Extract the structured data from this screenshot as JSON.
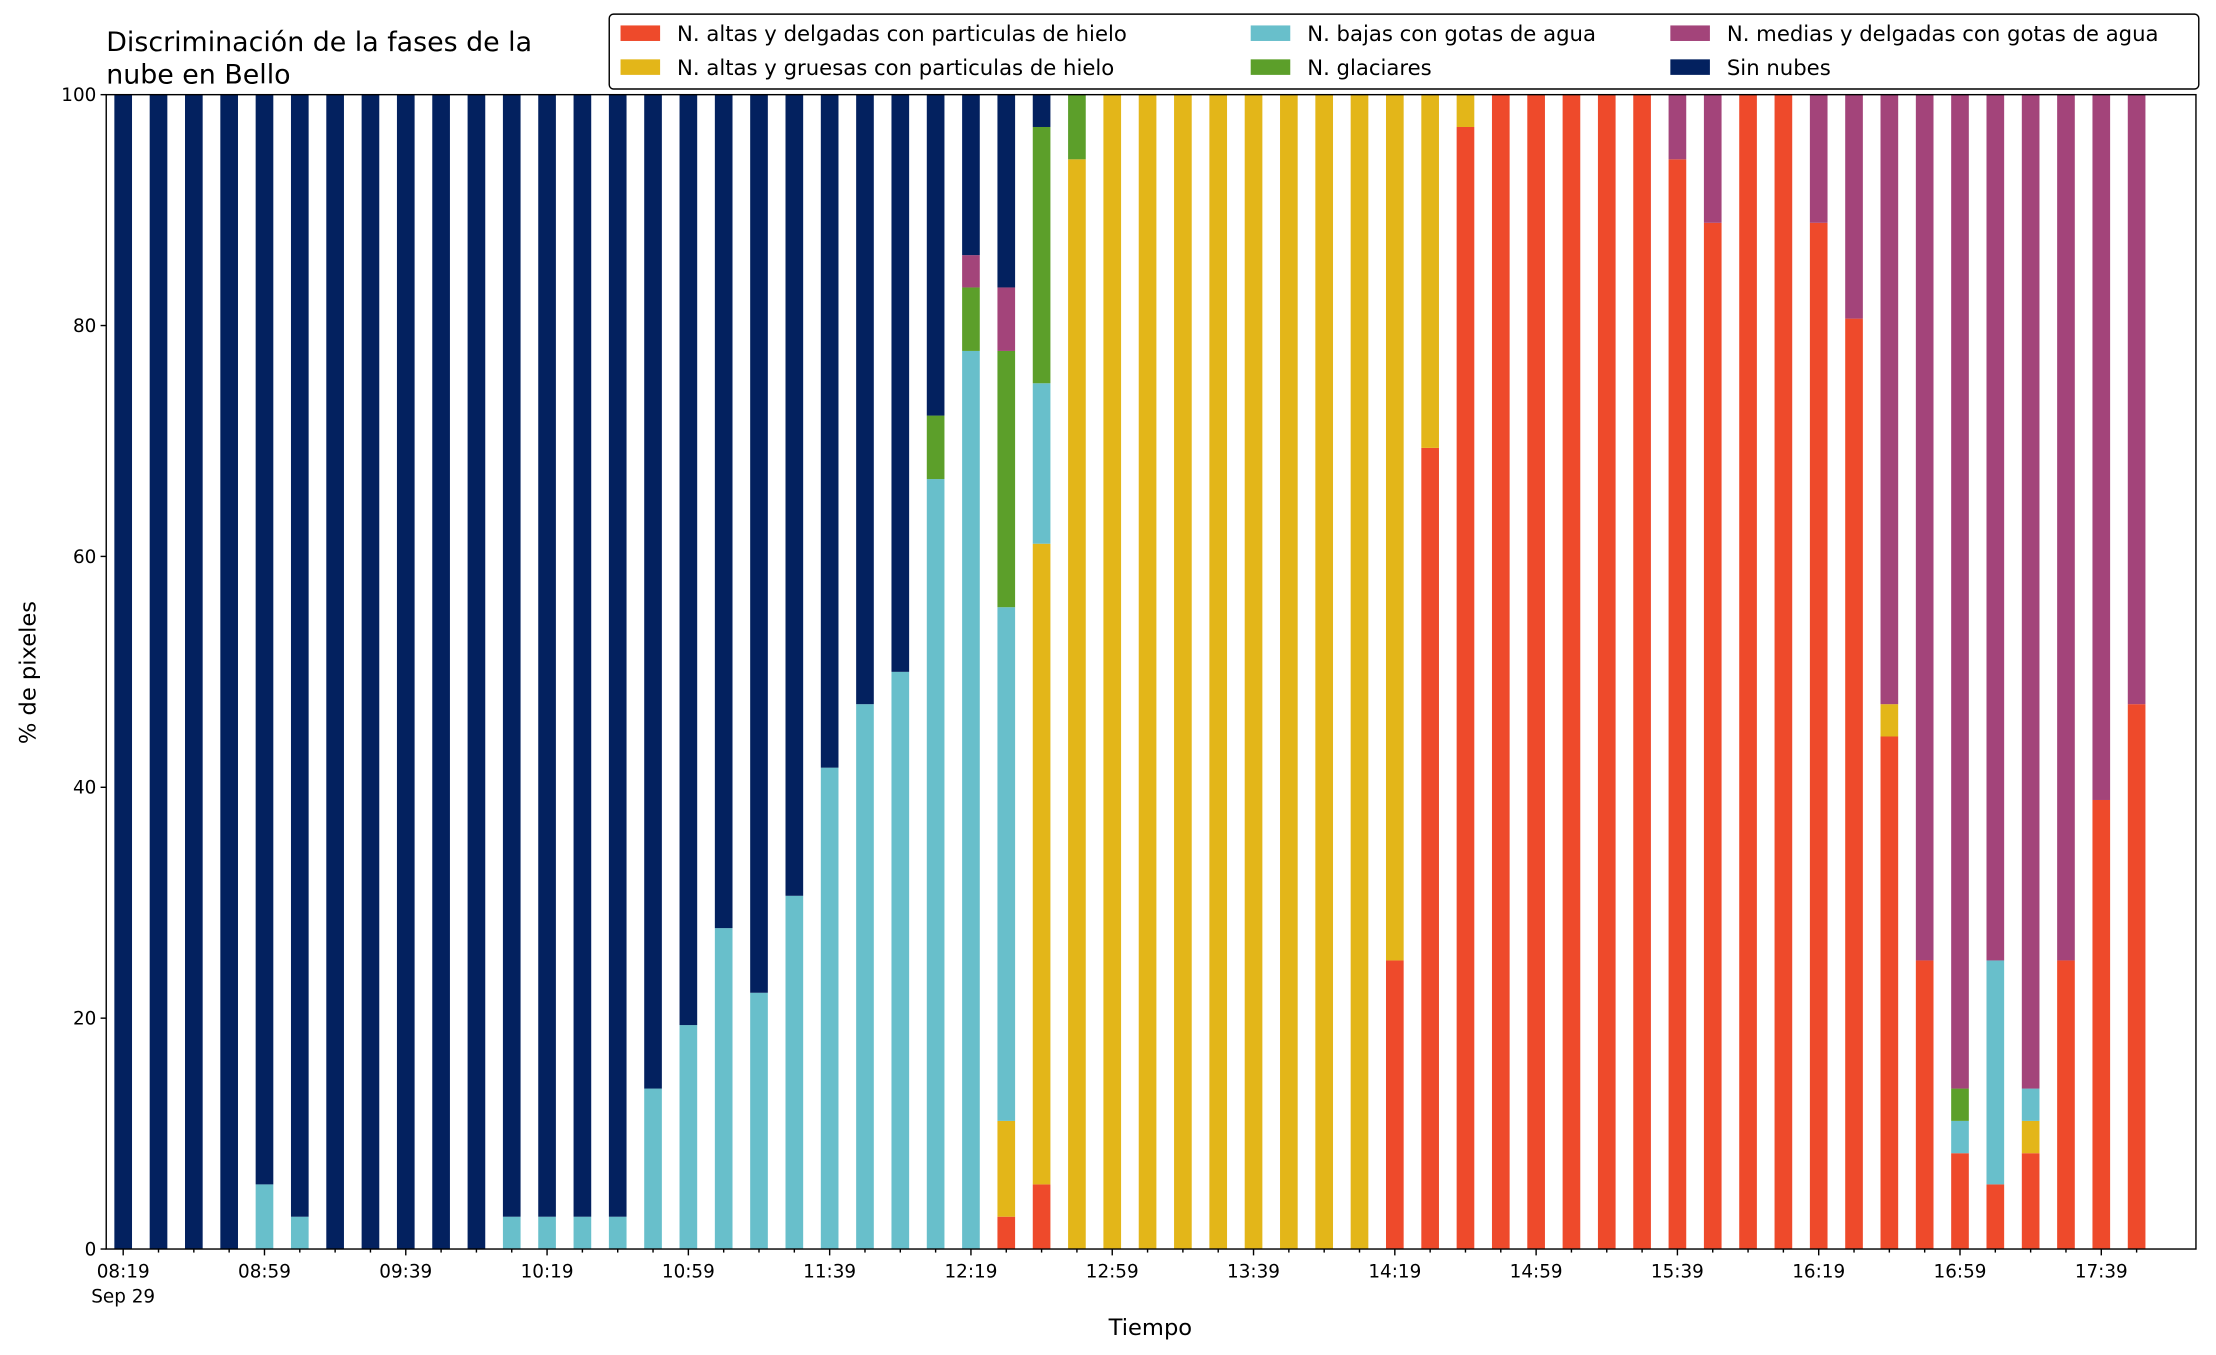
{
  "chart_data": {
    "type": "stacked_bar",
    "title_lines": [
      "Discriminación de la fases de la",
      "nube en Bello"
    ],
    "x_label": "Tiempo",
    "y_label": "% de pixeles",
    "categories": [
      "08:19",
      null,
      null,
      null,
      "08:59",
      null,
      null,
      null,
      "09:39",
      null,
      null,
      null,
      "10:19",
      null,
      null,
      null,
      "10:59",
      null,
      null,
      null,
      "11:39",
      null,
      null,
      null,
      "12:19",
      null,
      null,
      null,
      "12:59",
      null,
      null,
      null,
      "13:39",
      null,
      null,
      null,
      "14:19",
      null,
      null,
      null,
      "14:59",
      null,
      null,
      null,
      "15:39",
      null,
      null,
      null,
      "16:19",
      null,
      null,
      null,
      "16:59",
      null,
      null,
      null,
      "17:39",
      null
    ],
    "date_label": "Sep 29",
    "ylim": [
      0,
      100
    ],
    "yticks": [
      0,
      20,
      40,
      60,
      80,
      100
    ],
    "legend": "top-right",
    "series": [
      {
        "name": "N. altas y delgadas con particulas de hielo",
        "color": "#ee4a2b",
        "values": [
          0,
          0,
          0,
          0,
          0,
          0,
          0,
          0,
          0,
          0,
          0,
          0,
          0,
          0,
          0,
          0,
          0,
          0,
          0,
          0,
          0,
          0,
          0,
          0,
          0,
          2.8,
          5.6,
          0,
          0,
          0,
          0,
          0,
          0,
          0,
          0,
          0,
          25,
          69.4,
          97.2,
          100,
          100,
          100,
          100,
          100,
          94.4,
          88.9,
          100,
          100,
          88.9,
          80.6,
          44.4,
          25,
          8.3,
          5.6,
          8.3,
          25,
          38.9,
          47.2
        ]
      },
      {
        "name": "N. altas y gruesas con particulas de hielo",
        "color": "#e3b619",
        "values": [
          0,
          0,
          0,
          0,
          0,
          0,
          0,
          0,
          0,
          0,
          0,
          0,
          0,
          0,
          0,
          0,
          0,
          0,
          0,
          0,
          0,
          0,
          0,
          0,
          0,
          8.3,
          55.5,
          94.4,
          100,
          100,
          100,
          100,
          100,
          100,
          100,
          100,
          75,
          30.6,
          2.8,
          0,
          0,
          0,
          0,
          0,
          0,
          0,
          0,
          0,
          0,
          0,
          2.8,
          0,
          0,
          0,
          2.8,
          0,
          0,
          0
        ]
      },
      {
        "name": "N. bajas con gotas de agua",
        "color": "#68bfcb",
        "values": [
          0,
          0,
          0,
          0,
          5.6,
          2.8,
          0,
          0,
          0,
          0,
          0,
          2.8,
          2.8,
          2.8,
          2.8,
          13.9,
          19.4,
          27.8,
          22.2,
          30.6,
          41.7,
          47.2,
          50,
          66.7,
          77.8,
          44.5,
          13.9,
          0,
          0,
          0,
          0,
          0,
          0,
          0,
          0,
          0,
          0,
          0,
          0,
          0,
          0,
          0,
          0,
          0,
          0,
          0,
          0,
          0,
          0,
          0,
          0,
          0,
          2.8,
          19.4,
          2.8,
          0,
          0,
          0
        ]
      },
      {
        "name": "N. glaciares",
        "color": "#5c9f2a",
        "values": [
          0,
          0,
          0,
          0,
          0,
          0,
          0,
          0,
          0,
          0,
          0,
          0,
          0,
          0,
          0,
          0,
          0,
          0,
          0,
          0,
          0,
          0,
          0,
          5.5,
          5.5,
          22.2,
          22.2,
          5.6,
          0,
          0,
          0,
          0,
          0,
          0,
          0,
          0,
          0,
          0,
          0,
          0,
          0,
          0,
          0,
          0,
          0,
          0,
          0,
          0,
          0,
          0,
          0,
          0,
          2.8,
          0,
          0,
          0,
          0,
          0
        ]
      },
      {
        "name": "N. medias y delgadas con gotas de agua",
        "color": "#a3447a",
        "values": [
          0,
          0,
          0,
          0,
          0,
          0,
          0,
          0,
          0,
          0,
          0,
          0,
          0,
          0,
          0,
          0,
          0,
          0,
          0,
          0,
          0,
          0,
          0,
          0,
          2.8,
          5.5,
          0,
          0,
          0,
          0,
          0,
          0,
          0,
          0,
          0,
          0,
          0,
          0,
          0,
          0,
          0,
          0,
          0,
          0,
          5.6,
          11.1,
          0,
          0,
          11.1,
          19.4,
          52.8,
          75,
          86.1,
          75,
          86.1,
          75,
          61.1,
          52.8
        ]
      },
      {
        "name": "Sin nubes",
        "color": "#03215f",
        "values": [
          100,
          100,
          100,
          100,
          94.4,
          97.2,
          100,
          100,
          100,
          100,
          100,
          97.2,
          97.2,
          97.2,
          97.2,
          86.1,
          80.6,
          72.2,
          77.8,
          69.4,
          58.3,
          52.8,
          50,
          27.8,
          13.9,
          16.7,
          2.8,
          0,
          0,
          0,
          0,
          0,
          0,
          0,
          0,
          0,
          0,
          0,
          0,
          0,
          0,
          0,
          0,
          0,
          0,
          0,
          0,
          0,
          0,
          0,
          0,
          0,
          0,
          0,
          0,
          0,
          0,
          0
        ]
      }
    ]
  }
}
